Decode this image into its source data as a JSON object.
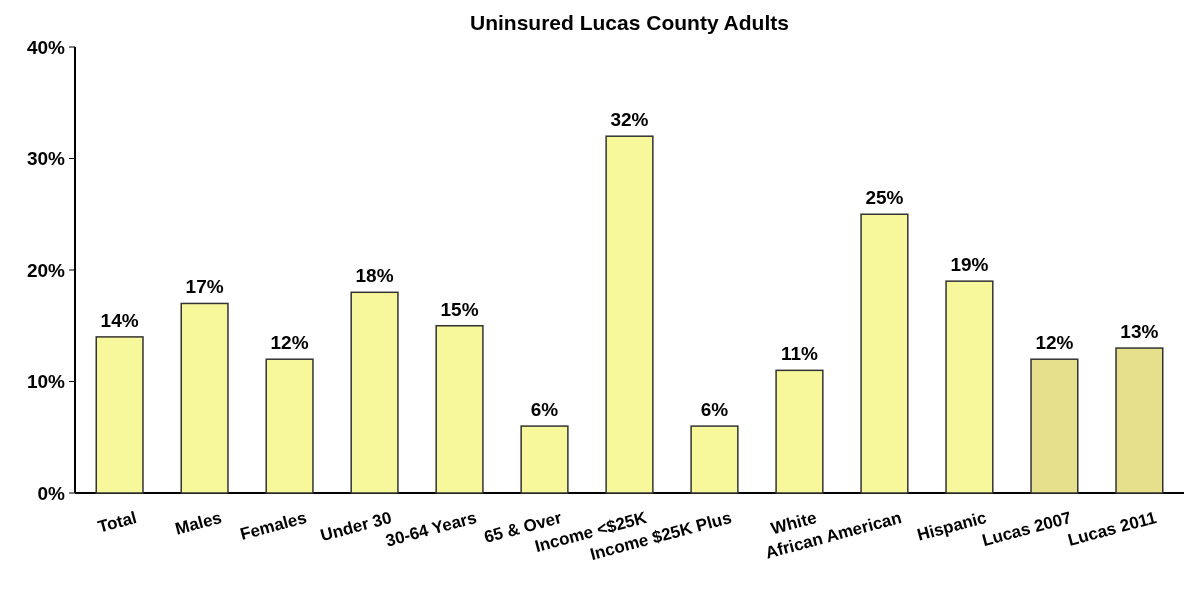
{
  "chart_data": {
    "type": "bar",
    "title": "Uninsured Lucas County Adults",
    "categories": [
      "Total",
      "Males",
      "Females",
      "Under 30",
      "30-64 Years",
      "65 & Over",
      "Income <$25K",
      "Income $25K Plus",
      "White",
      "African American",
      "Hispanic",
      "Lucas 2007",
      "Lucas 2011"
    ],
    "values": [
      14,
      17,
      12,
      18,
      15,
      6,
      32,
      6,
      11,
      25,
      19,
      12,
      13
    ],
    "value_labels": [
      "14%",
      "17%",
      "12%",
      "18%",
      "15%",
      "6%",
      "32%",
      "6%",
      "11%",
      "25%",
      "19%",
      "12%",
      "13%"
    ],
    "colors": [
      "#f7f79c",
      "#f7f79c",
      "#f7f79c",
      "#f7f79c",
      "#f7f79c",
      "#f7f79c",
      "#f7f79c",
      "#f7f79c",
      "#f7f79c",
      "#f7f79c",
      "#f7f79c",
      "#e6e08c",
      "#e6e08c"
    ],
    "ylim": [
      0,
      40
    ],
    "yticks": [
      {
        "value": 0,
        "label": "0%"
      },
      {
        "value": 10,
        "label": "10%"
      },
      {
        "value": 20,
        "label": "20%"
      },
      {
        "value": 30,
        "label": "30%"
      },
      {
        "value": 40,
        "label": "40%"
      }
    ],
    "grid": false
  }
}
